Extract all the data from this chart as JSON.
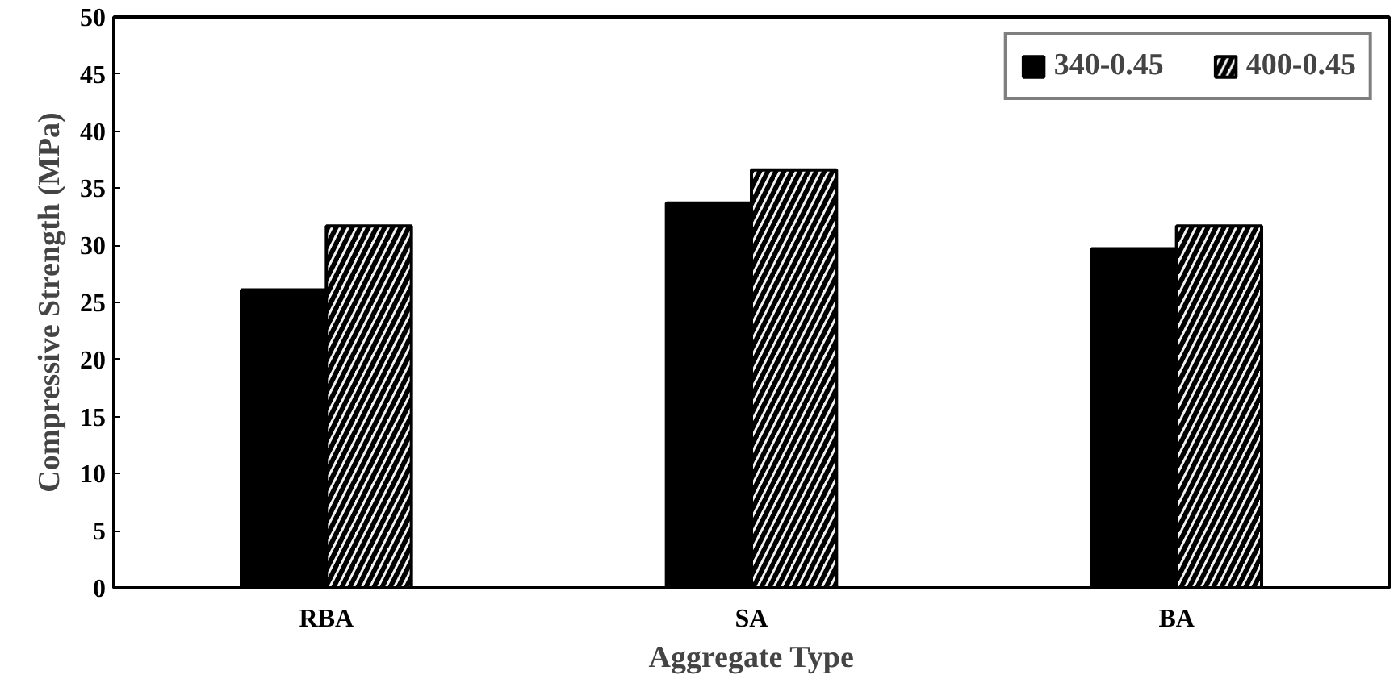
{
  "chart_data": {
    "type": "bar",
    "xlabel": "Aggregate Type",
    "ylabel": "Compressive Strength (MPa)",
    "categories": [
      "RBA",
      "SA",
      "BA"
    ],
    "series": [
      {
        "name": "340-0.45",
        "color": "#000000",
        "values": [
          26.1,
          33.7,
          29.7
        ]
      },
      {
        "name": "400-0.45",
        "color": "#f2f2f2",
        "values": [
          31.7,
          36.6,
          31.7
        ]
      }
    ],
    "ylim": [
      0,
      50
    ],
    "yticks": [
      0,
      5,
      10,
      15,
      20,
      25,
      30,
      35,
      40,
      45,
      50
    ],
    "grid": false,
    "legend": "top right"
  }
}
